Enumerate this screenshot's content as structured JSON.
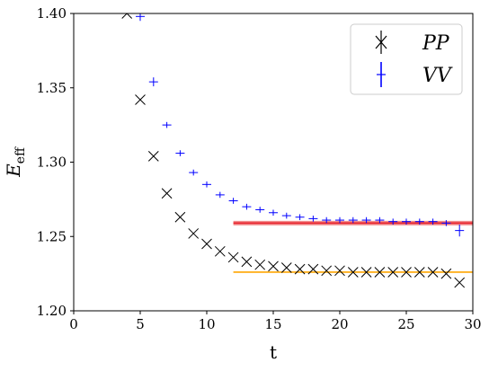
{
  "chart_data": {
    "type": "scatter",
    "title": "",
    "xlabel": "t",
    "ylabel": "E",
    "ylabel_sub": "eff",
    "xlim": [
      0,
      30
    ],
    "ylim": [
      1.2,
      1.4
    ],
    "xticks": [
      0,
      5,
      10,
      15,
      20,
      25,
      30
    ],
    "xtick_labels": [
      "0",
      "5",
      "10",
      "15",
      "20",
      "25",
      "30"
    ],
    "yticks": [
      1.2,
      1.25,
      1.3,
      1.35,
      1.4
    ],
    "ytick_labels": [
      "1.20",
      "1.25",
      "1.30",
      "1.35",
      "1.40"
    ],
    "grid": false,
    "legend_position": "top-right",
    "legend": [
      "PP",
      "VV"
    ],
    "series": [
      {
        "name": "PP",
        "marker": "x",
        "color": "#000000",
        "x": [
          4,
          5,
          6,
          7,
          8,
          9,
          10,
          11,
          12,
          13,
          14,
          15,
          16,
          17,
          18,
          19,
          20,
          21,
          22,
          23,
          24,
          25,
          26,
          27,
          28,
          29
        ],
        "y": [
          1.4,
          1.342,
          1.304,
          1.279,
          1.263,
          1.252,
          1.245,
          1.24,
          1.236,
          1.233,
          1.231,
          1.23,
          1.229,
          1.228,
          1.228,
          1.227,
          1.227,
          1.226,
          1.226,
          1.226,
          1.226,
          1.226,
          1.226,
          1.226,
          1.225,
          1.219
        ]
      },
      {
        "name": "VV",
        "marker": "errorbar",
        "color": "#0000ff",
        "x": [
          5,
          6,
          7,
          8,
          9,
          10,
          11,
          12,
          13,
          14,
          15,
          16,
          17,
          18,
          19,
          20,
          21,
          22,
          23,
          24,
          25,
          26,
          27,
          28,
          29
        ],
        "y": [
          1.398,
          1.354,
          1.325,
          1.306,
          1.293,
          1.285,
          1.278,
          1.274,
          1.27,
          1.268,
          1.266,
          1.264,
          1.263,
          1.262,
          1.261,
          1.261,
          1.261,
          1.261,
          1.261,
          1.26,
          1.26,
          1.26,
          1.26,
          1.259,
          1.254
        ],
        "yerr": [
          0.003,
          0.003,
          0.002,
          0.002,
          0.002,
          0.002,
          0.002,
          0.002,
          0.002,
          0.002,
          0.002,
          0.002,
          0.002,
          0.002,
          0.002,
          0.002,
          0.002,
          0.002,
          0.002,
          0.002,
          0.002,
          0.002,
          0.002,
          0.002,
          0.004
        ]
      }
    ],
    "fits": [
      {
        "name": "VV fit",
        "x_range": [
          12,
          30
        ],
        "y": 1.259,
        "band": [
          1.2575,
          1.2605
        ],
        "color": "#e8202a",
        "band_color": "#f08080"
      },
      {
        "name": "PP fit",
        "x_range": [
          12,
          30
        ],
        "y": 1.226,
        "band": [
          1.2258,
          1.2262
        ],
        "color": "#ffa500",
        "band_color": "#ffd27f"
      }
    ]
  }
}
